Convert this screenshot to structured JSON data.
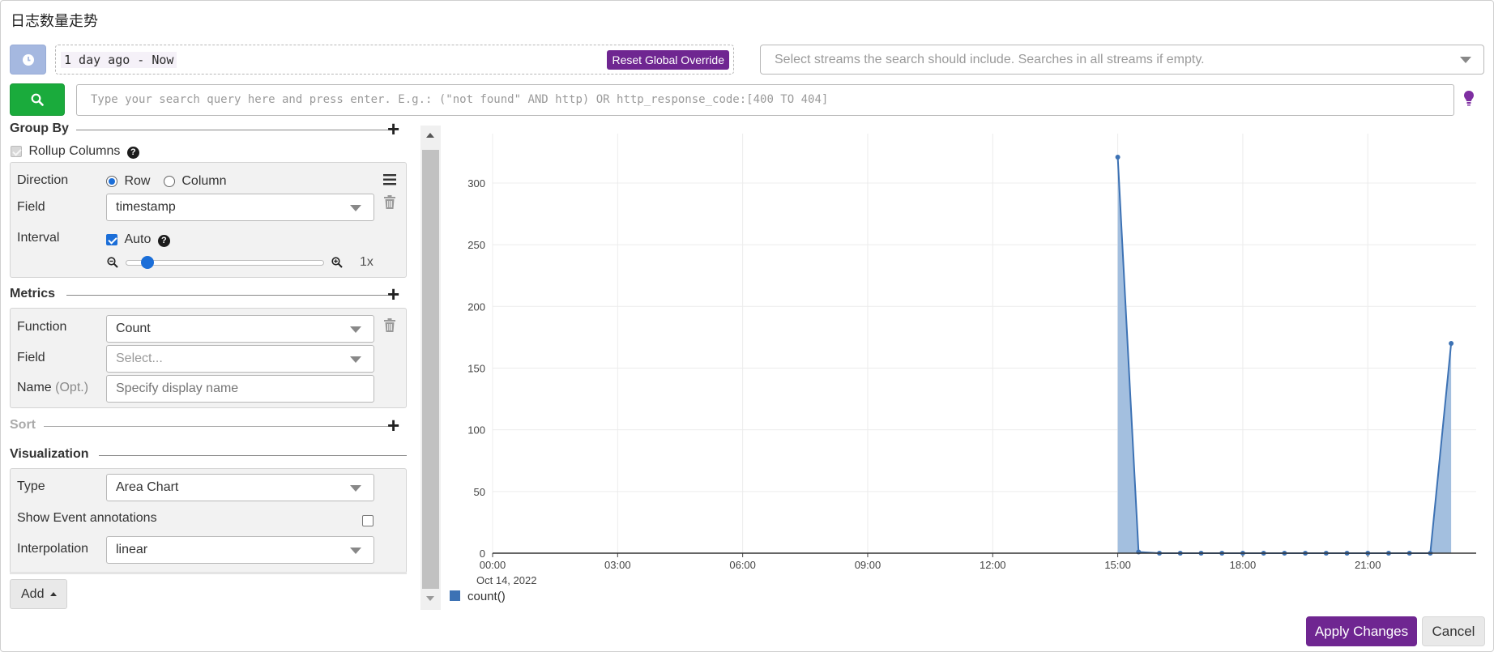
{
  "title": "日志数量走势",
  "time_range": {
    "text": "1 day ago - Now",
    "reset_label": "Reset Global Override"
  },
  "streams": {
    "placeholder": "Select streams the search should include. Searches in all streams if empty."
  },
  "search": {
    "placeholder": "Type your search query here and press enter. E.g.: (\"not found\" AND http) OR http_response_code:[400 TO 404]"
  },
  "group_by": {
    "title": "Group By",
    "rollup_label": "Rollup Columns",
    "rollup_checked": true,
    "direction_label": "Direction",
    "row_label": "Row",
    "column_label": "Column",
    "field_label": "Field",
    "field_value": "timestamp",
    "interval_label": "Interval",
    "auto_label": "Auto",
    "auto_checked": true,
    "scale_value": "1x",
    "slider_fraction": 0.08
  },
  "metrics": {
    "title": "Metrics",
    "function_label": "Function",
    "function_value": "Count",
    "field_label": "Field",
    "field_placeholder": "Select...",
    "name_label": "Name",
    "name_opt": "(Opt.)",
    "name_placeholder": "Specify display name"
  },
  "sort": {
    "title": "Sort"
  },
  "visualization": {
    "title": "Visualization",
    "type_label": "Type",
    "type_value": "Area Chart",
    "annotations_label": "Show Event annotations",
    "annotations_checked": false,
    "interpolation_label": "Interpolation",
    "interpolation_value": "linear"
  },
  "add_label": "Add",
  "footer": {
    "apply_label": "Apply Changes",
    "cancel_label": "Cancel"
  },
  "colors": {
    "accent": "#6f2691",
    "search_green": "#1aab3c",
    "series_line": "#3d72b4",
    "series_fill": "#a3bfdf"
  },
  "chart_data": {
    "type": "area",
    "title": "",
    "xlabel": "",
    "ylabel": "",
    "x_ticks": [
      "00:00",
      "03:00",
      "06:00",
      "09:00",
      "12:00",
      "15:00",
      "18:00",
      "21:00"
    ],
    "x_tick_hours": [
      0,
      3,
      6,
      9,
      12,
      15,
      18,
      21
    ],
    "x_sub_label": "Oct 14, 2022",
    "xlim_hours": [
      0,
      23.6
    ],
    "ylim": [
      0,
      340
    ],
    "y_ticks": [
      0,
      50,
      100,
      150,
      200,
      250,
      300
    ],
    "grid": true,
    "legend_position": "bottom-left",
    "series": [
      {
        "name": "count()",
        "x_hours": [
          15.0,
          15.5,
          16.0,
          16.5,
          17.0,
          17.5,
          18.0,
          18.5,
          19.0,
          19.5,
          20.0,
          20.5,
          21.0,
          21.5,
          22.0,
          22.5,
          23.0
        ],
        "values": [
          321,
          1,
          0,
          0,
          0,
          0,
          0,
          0,
          0,
          0,
          0,
          0,
          0,
          0,
          0,
          0,
          170
        ]
      }
    ]
  }
}
